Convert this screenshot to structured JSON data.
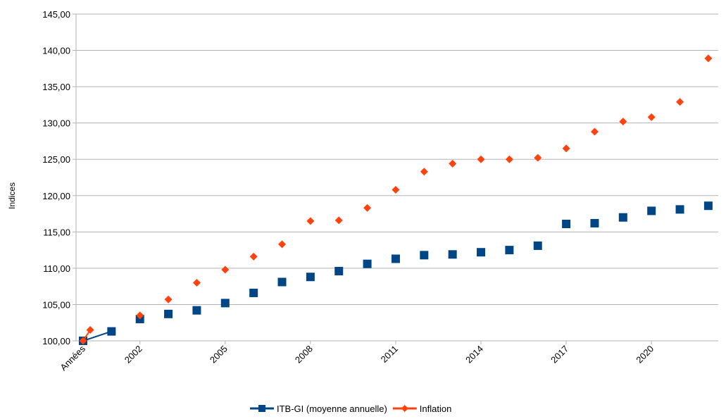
{
  "chart_data": {
    "type": "scatter",
    "title": "",
    "xlabel": "",
    "ylabel": "Indices",
    "x_tick_labels": [
      "Années",
      "2002",
      "2005",
      "2008",
      "2011",
      "2014",
      "2017",
      "2020"
    ],
    "y_tick_labels": [
      "100,00",
      "105,00",
      "110,00",
      "115,00",
      "120,00",
      "125,00",
      "130,00",
      "135,00",
      "140,00",
      "145,00"
    ],
    "ylim": [
      100,
      145
    ],
    "grid": "horizontal",
    "legend_position": "bottom",
    "x": [
      2000,
      2000.25,
      2001,
      2002,
      2003,
      2004,
      2005,
      2006,
      2007,
      2008,
      2009,
      2010,
      2011,
      2012,
      2013,
      2014,
      2015,
      2016,
      2017,
      2018,
      2019,
      2020,
      2021,
      2022
    ],
    "series": [
      {
        "name": "ITB-GI (moyenne annuelle)",
        "color": "#004586",
        "marker": "square",
        "values": [
          100.0,
          null,
          101.3,
          103.0,
          103.7,
          104.2,
          105.2,
          106.6,
          108.1,
          108.8,
          109.6,
          110.6,
          111.3,
          111.8,
          111.9,
          112.2,
          112.5,
          113.1,
          116.1,
          116.2,
          117.0,
          117.9,
          118.1,
          118.6
        ]
      },
      {
        "name": "Inflation",
        "color": "#ff420e",
        "marker": "diamond",
        "values": [
          100.0,
          101.5,
          null,
          103.5,
          105.7,
          108.0,
          109.8,
          111.6,
          113.3,
          116.5,
          116.6,
          118.3,
          120.8,
          123.3,
          124.4,
          125.0,
          125.0,
          125.2,
          126.5,
          128.8,
          130.2,
          130.8,
          132.9,
          138.9
        ]
      }
    ]
  }
}
